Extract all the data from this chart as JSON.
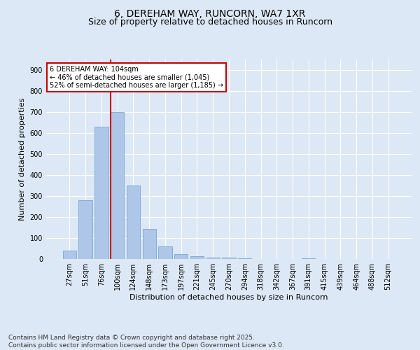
{
  "title": "6, DEREHAM WAY, RUNCORN, WA7 1XR",
  "subtitle": "Size of property relative to detached houses in Runcorn",
  "xlabel": "Distribution of detached houses by size in Runcorn",
  "ylabel": "Number of detached properties",
  "categories": [
    "27sqm",
    "51sqm",
    "76sqm",
    "100sqm",
    "124sqm",
    "148sqm",
    "173sqm",
    "197sqm",
    "221sqm",
    "245sqm",
    "270sqm",
    "294sqm",
    "318sqm",
    "342sqm",
    "367sqm",
    "391sqm",
    "415sqm",
    "439sqm",
    "464sqm",
    "488sqm",
    "512sqm"
  ],
  "values": [
    40,
    280,
    630,
    700,
    350,
    145,
    60,
    25,
    12,
    8,
    7,
    5,
    0,
    0,
    0,
    2,
    0,
    0,
    0,
    0,
    0
  ],
  "bar_color": "#aec6e8",
  "bar_edge_color": "#7aa8d0",
  "vline_index": 3,
  "vline_color": "#cc0000",
  "annotation_text": "6 DEREHAM WAY: 104sqm\n← 46% of detached houses are smaller (1,045)\n52% of semi-detached houses are larger (1,185) →",
  "annotation_box_color": "#ffffff",
  "annotation_box_edge_color": "#cc0000",
  "ylim": [
    0,
    950
  ],
  "yticks": [
    0,
    100,
    200,
    300,
    400,
    500,
    600,
    700,
    800,
    900
  ],
  "bg_color": "#dce8f5",
  "axes_bg_color": "#dce8f5",
  "footer_text": "Contains HM Land Registry data © Crown copyright and database right 2025.\nContains public sector information licensed under the Open Government Licence v3.0.",
  "title_fontsize": 10,
  "subtitle_fontsize": 9,
  "label_fontsize": 8,
  "tick_fontsize": 7,
  "footer_fontsize": 6.5
}
